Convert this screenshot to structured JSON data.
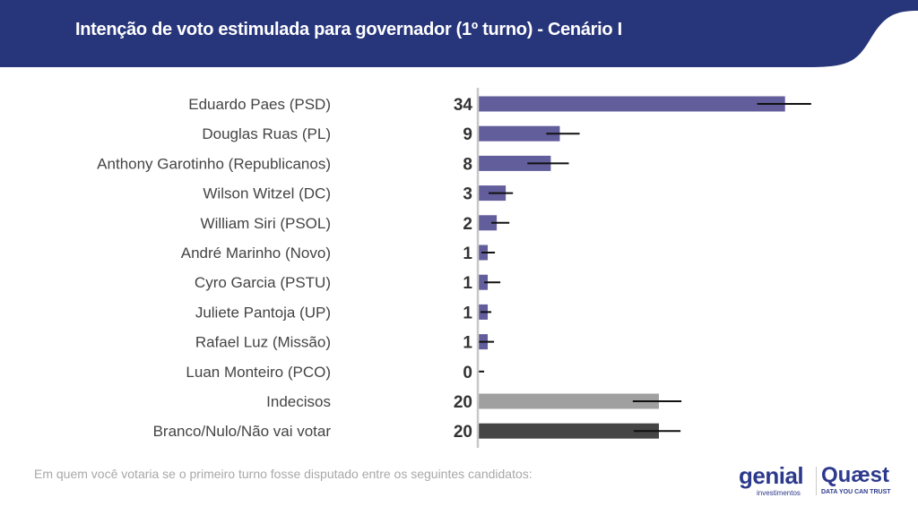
{
  "header": {
    "title": "Intenção de voto estimulada para governador (1º turno) - Cenário I",
    "color": "#27357a"
  },
  "footnote": "Em quem você votaria se o primeiro turno fosse disputado entre os seguintes candidatos:",
  "logos": {
    "genial": "genial",
    "genial_sub": "investimentos",
    "quaest": "Quæst",
    "quaest_sub": "DATA YOU CAN TRUST"
  },
  "chart_data": {
    "type": "bar",
    "orientation": "horizontal",
    "title": "Intenção de voto estimulada para governador (1º turno) - Cenário I",
    "xlim": [
      0,
      37
    ],
    "grid": false,
    "categories": [
      "Eduardo Paes (PSD)",
      "Douglas Ruas (PL)",
      "Anthony Garotinho (Republicanos)",
      "Wilson Witzel (DC)",
      "William Siri (PSOL)",
      "André Marinho (Novo)",
      "Cyro Garcia (PSTU)",
      "Juliete Pantoja (UP)",
      "Rafael Luz (Missão)",
      "Luan Monteiro (PCO)",
      "Indecisos",
      "Branco/Nulo/Não vai votar"
    ],
    "values": [
      34,
      9,
      8,
      3,
      2,
      1,
      1,
      1,
      1,
      0,
      20,
      20
    ],
    "error_low": [
      30.9,
      7.5,
      5.4,
      1.1,
      1.4,
      0.3,
      0.6,
      0.2,
      0,
      0,
      17.1,
      17.2
    ],
    "error_high": [
      36.9,
      11.2,
      10.0,
      3.8,
      3.4,
      1.8,
      2.4,
      1.4,
      1.7,
      0.6,
      22.5,
      22.4
    ],
    "colors": [
      "#625d9b",
      "#625d9b",
      "#625d9b",
      "#625d9b",
      "#625d9b",
      "#625d9b",
      "#625d9b",
      "#625d9b",
      "#625d9b",
      "#625d9b",
      "#a0a0a0",
      "#454545"
    ]
  }
}
